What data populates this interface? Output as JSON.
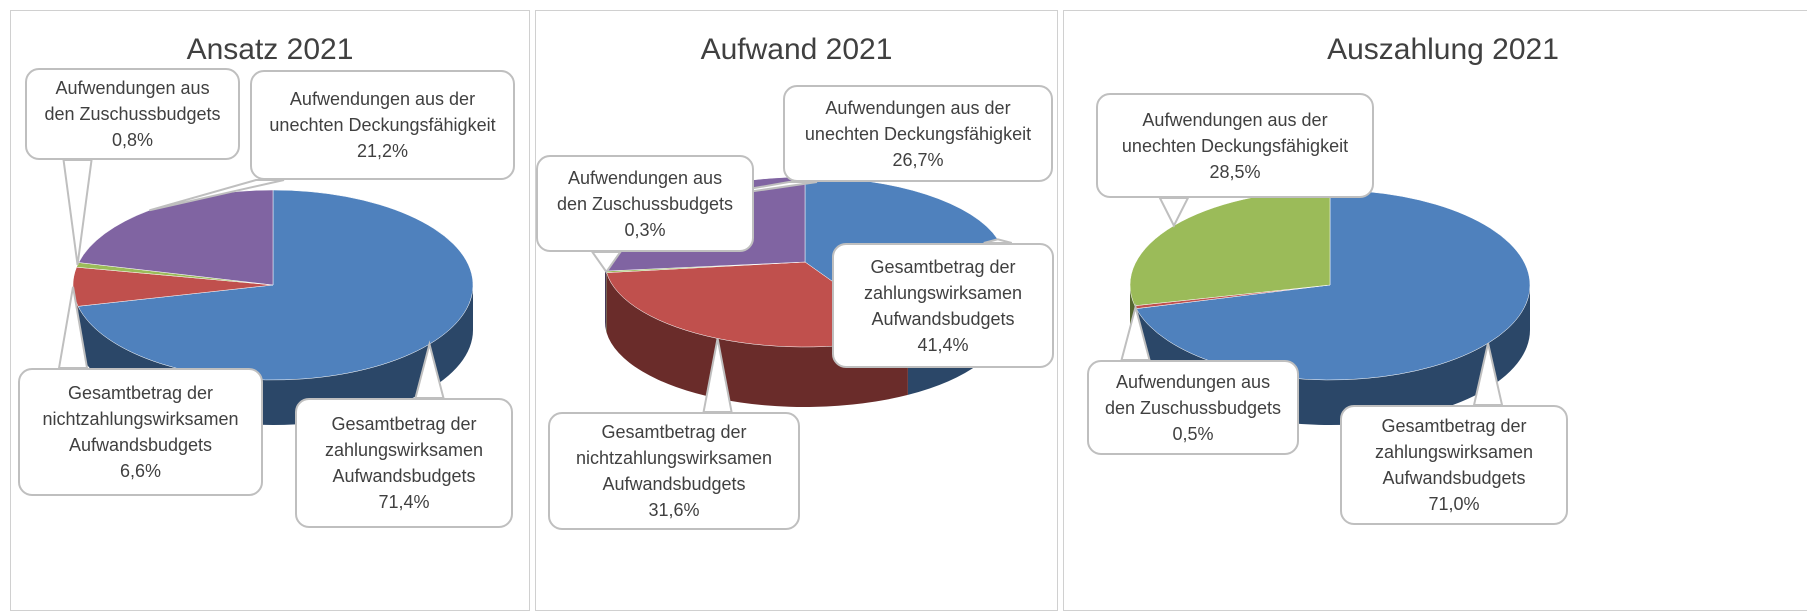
{
  "chart_data": [
    {
      "type": "pie",
      "title": "Ansatz 2021",
      "categories": [
        "Gesamtbetrag der\nzahlungswirksamen\nAufwandsbudgets",
        "Gesamtbetrag der\nnichtzahlungswirksamen\nAufwandsbudgets",
        "Aufwendungen aus\nden Zuschussbudgets",
        "Aufwendungen aus der\nunechten Deckungsfähigkeit"
      ],
      "values": [
        71.4,
        6.6,
        0.8,
        21.2
      ],
      "value_labels": [
        "71,4%",
        "6,6%",
        "0,8%",
        "21,2%"
      ],
      "colors": [
        "#4f81bd",
        "#c0504d",
        "#9bbb59",
        "#8064a2"
      ]
    },
    {
      "type": "pie",
      "title": "Aufwand 2021",
      "categories": [
        "Gesamtbetrag der\nzahlungswirksamen\nAufwandsbudgets",
        "Gesamtbetrag der\nnichtzahlungswirksamen\nAufwandsbudgets",
        "Aufwendungen aus\nden Zuschussbudgets",
        "Aufwendungen aus der\nunechten Deckungsfähigkeit"
      ],
      "values": [
        41.4,
        31.6,
        0.3,
        26.7
      ],
      "value_labels": [
        "41,4%",
        "31,6%",
        "0,3%",
        "26,7%"
      ],
      "colors": [
        "#4f81bd",
        "#c0504d",
        "#9bbb59",
        "#8064a2"
      ]
    },
    {
      "type": "pie",
      "title": "Auszahlung 2021",
      "categories": [
        "Gesamtbetrag der\nzahlungswirksamen\nAufwandsbudgets",
        "Aufwendungen aus\nden Zuschussbudgets",
        "Aufwendungen aus der\nunechten Deckungsfähigkeit"
      ],
      "values": [
        71.0,
        0.5,
        28.5
      ],
      "value_labels": [
        "71,0%",
        "0,5%",
        "28,5%"
      ],
      "colors": [
        "#4f81bd",
        "#c0504d",
        "#9bbb59"
      ]
    }
  ]
}
